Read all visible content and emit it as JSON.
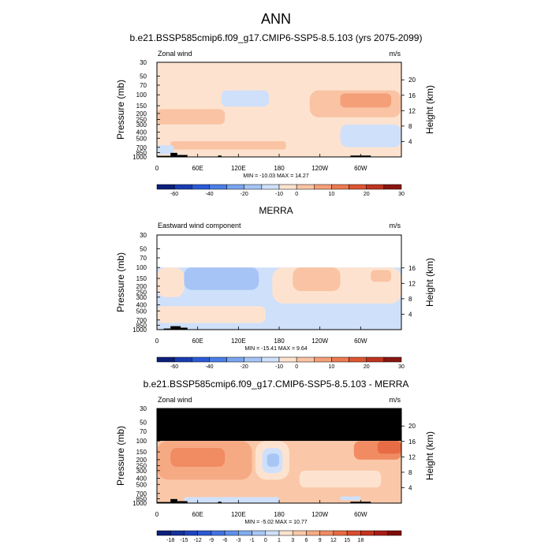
{
  "page_title": "ANN",
  "chart_data": [
    {
      "type": "heatmap",
      "title": "b.e21.BSSP585cmip6.f09_g17.CMIP6-SSP5-8.5.103 (yrs 2075-2099)",
      "left_string": "Zonal wind",
      "right_string": "m/s",
      "ylabel": "Pressure (mb)",
      "ylabel_right": "Height (km)",
      "pressure_ticks": [
        "30",
        "50",
        "70",
        "100",
        "150",
        "200",
        "250",
        "300",
        "400",
        "500",
        "700",
        "850",
        "1000"
      ],
      "height_ticks": [
        "20",
        "16",
        "12",
        "8",
        "4"
      ],
      "lon_ticks": [
        "0",
        "60E",
        "120E",
        "180",
        "120W",
        "60W"
      ],
      "min_max_text": "MIN = -10.03  MAX =  14.27",
      "colorbar_labels": [
        "-60",
        "-40",
        "-20",
        "-10",
        "0",
        "10",
        "20",
        "30"
      ],
      "colorbar_colors": [
        "#0b1f7a",
        "#1a3cb0",
        "#2a5ad6",
        "#4a7ee6",
        "#7aa4ee",
        "#a6c4f5",
        "#cfe0fa",
        "#fde3cf",
        "#f9c3a4",
        "#f49f78",
        "#ec7a50",
        "#dc5631",
        "#bd3520",
        "#8a1610"
      ],
      "regions": [
        {
          "lon": [
            0,
            360
          ],
          "p": [
            30,
            1000
          ],
          "color": "#fde3cf"
        },
        {
          "lon": [
            95,
            165
          ],
          "p": [
            85,
            155
          ],
          "color": "#cfe0fa"
        },
        {
          "lon": [
            270,
            360
          ],
          "p": [
            300,
            700
          ],
          "color": "#cfe0fa"
        },
        {
          "lon": [
            225,
            360
          ],
          "p": [
            85,
            230
          ],
          "color": "#f9c3a4"
        },
        {
          "lon": [
            270,
            345
          ],
          "p": [
            95,
            160
          ],
          "color": "#f49f78"
        },
        {
          "lon": [
            0,
            100
          ],
          "p": [
            170,
            300
          ],
          "color": "#f9c3a4"
        },
        {
          "lon": [
            20,
            190
          ],
          "p": [
            560,
            760
          ],
          "color": "#f9c3a4"
        },
        {
          "lon": [
            0,
            25
          ],
          "p": [
            650,
            900
          ],
          "color": "#cfe0fa"
        }
      ],
      "terrain": [
        {
          "lon": [
            0,
            20
          ],
          "p": 960
        },
        {
          "lon": [
            20,
            30
          ],
          "p": 860
        },
        {
          "lon": [
            30,
            45
          ],
          "p": 930
        },
        {
          "lon": [
            90,
            95
          ],
          "p": 950
        },
        {
          "lon": [
            285,
            315
          ],
          "p": 950
        }
      ]
    },
    {
      "type": "heatmap",
      "title": "MERRA",
      "left_string": "Eastward wind component",
      "right_string": "m/s",
      "ylabel": "Pressure (mb)",
      "ylabel_right": "Height (km)",
      "pressure_ticks": [
        "30",
        "50",
        "70",
        "100",
        "150",
        "200",
        "250",
        "300",
        "400",
        "500",
        "700",
        "850",
        "1000"
      ],
      "height_ticks": [
        "16",
        "12",
        "8",
        "4"
      ],
      "lon_ticks": [
        "0",
        "60E",
        "120E",
        "180",
        "120W",
        "60W"
      ],
      "min_max_text": "MIN = -15.41  MAX =   9.64",
      "colorbar_labels": [
        "-60",
        "-40",
        "-20",
        "-10",
        "0",
        "10",
        "20",
        "30"
      ],
      "colorbar_colors": [
        "#0b1f7a",
        "#1a3cb0",
        "#2a5ad6",
        "#4a7ee6",
        "#7aa4ee",
        "#a6c4f5",
        "#cfe0fa",
        "#fde3cf",
        "#f9c3a4",
        "#f49f78",
        "#ec7a50",
        "#dc5631",
        "#bd3520",
        "#8a1610"
      ],
      "regions": [
        {
          "lon": [
            0,
            360
          ],
          "p": [
            100,
            1000
          ],
          "color": "#cfe0fa"
        },
        {
          "lon": [
            0,
            40
          ],
          "p": [
            100,
            300
          ],
          "color": "#fde3cf"
        },
        {
          "lon": [
            0,
            160
          ],
          "p": [
            420,
            780
          ],
          "color": "#fde3cf"
        },
        {
          "lon": [
            170,
            360
          ],
          "p": [
            100,
            380
          ],
          "color": "#fde3cf"
        },
        {
          "lon": [
            40,
            150
          ],
          "p": [
            100,
            230
          ],
          "color": "#a6c4f5"
        },
        {
          "lon": [
            200,
            270
          ],
          "p": [
            100,
            240
          ],
          "color": "#f9c3a4"
        },
        {
          "lon": [
            315,
            345
          ],
          "p": [
            110,
            170
          ],
          "color": "#f9c3a4"
        }
      ],
      "terrain": [
        {
          "lon": [
            10,
            20
          ],
          "p": 960
        },
        {
          "lon": [
            20,
            35
          ],
          "p": 880
        },
        {
          "lon": [
            35,
            45
          ],
          "p": 930
        }
      ]
    },
    {
      "type": "heatmap",
      "title": "b.e21.BSSP585cmip6.f09_g17.CMIP6-SSP5-8.5.103 - MERRA",
      "left_string": "Zonal wind",
      "right_string": "m/s",
      "ylabel": "Pressure (mb)",
      "ylabel_right": "Height (km)",
      "pressure_ticks": [
        "30",
        "50",
        "70",
        "100",
        "150",
        "200",
        "250",
        "300",
        "400",
        "500",
        "700",
        "850",
        "1000"
      ],
      "height_ticks": [
        "20",
        "16",
        "12",
        "8",
        "4"
      ],
      "lon_ticks": [
        "0",
        "60E",
        "120E",
        "180",
        "120W",
        "60W"
      ],
      "min_max_text": "MIN = -5.02  MAX = 10.77",
      "colorbar_labels": [
        "-18",
        "-15",
        "-12",
        "-9",
        "-6",
        "-3",
        "-1",
        "0",
        "1",
        "3",
        "6",
        "9",
        "12",
        "15",
        "18"
      ],
      "colorbar_colors": [
        "#0b1f7a",
        "#14309c",
        "#1f43bd",
        "#2d58d4",
        "#4373e0",
        "#5f8fe8",
        "#82acef",
        "#a8c6f5",
        "#cfe0fa",
        "#fde3cf",
        "#fac8a8",
        "#f6aa84",
        "#f08b62",
        "#e76b44",
        "#d94d2e",
        "#c5331f",
        "#a81c14",
        "#7e0c0a"
      ],
      "regions": [
        {
          "lon": [
            0,
            360
          ],
          "p": [
            30,
            100
          ],
          "color": "#000000"
        },
        {
          "lon": [
            0,
            360
          ],
          "p": [
            100,
            1000
          ],
          "color": "#fac8a8"
        },
        {
          "lon": [
            0,
            140
          ],
          "p": [
            100,
            420
          ],
          "color": "#f6aa84"
        },
        {
          "lon": [
            20,
            100
          ],
          "p": [
            130,
            260
          ],
          "color": "#f08b62"
        },
        {
          "lon": [
            290,
            360
          ],
          "p": [
            100,
            200
          ],
          "color": "#f08b62"
        },
        {
          "lon": [
            325,
            360
          ],
          "p": [
            100,
            160
          ],
          "color": "#e76b44"
        },
        {
          "lon": [
            145,
            195
          ],
          "p": [
            100,
            420
          ],
          "color": "#fde3cf"
        },
        {
          "lon": [
            155,
            185
          ],
          "p": [
            130,
            330
          ],
          "color": "#cfe0fa"
        },
        {
          "lon": [
            162,
            180
          ],
          "p": [
            160,
            260
          ],
          "color": "#a8c6f5"
        },
        {
          "lon": [
            210,
            330
          ],
          "p": [
            300,
            560
          ],
          "color": "#fde3cf"
        },
        {
          "lon": [
            40,
            180
          ],
          "p": [
            800,
            1000
          ],
          "color": "#cfe0fa"
        },
        {
          "lon": [
            270,
            300
          ],
          "p": [
            780,
            900
          ],
          "color": "#cfe0fa"
        }
      ],
      "terrain": [
        {
          "lon": [
            0,
            20
          ],
          "p": 960
        },
        {
          "lon": [
            20,
            30
          ],
          "p": 860
        },
        {
          "lon": [
            30,
            45
          ],
          "p": 930
        },
        {
          "lon": [
            90,
            95
          ],
          "p": 950
        },
        {
          "lon": [
            285,
            315
          ],
          "p": 950
        }
      ]
    }
  ]
}
